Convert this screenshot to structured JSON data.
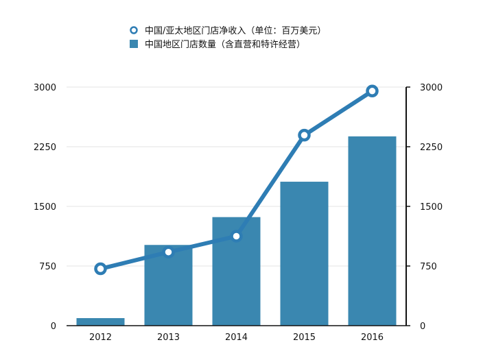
{
  "chart_data": {
    "type": "bar",
    "categories": [
      "2012",
      "2013",
      "2014",
      "2015",
      "2016"
    ],
    "series": [
      {
        "name": "中国/亚太地区门店净收入（单位：百万美元）",
        "kind": "line",
        "axis": "left",
        "values": [
          715,
          925,
          1125,
          2395,
          2950
        ]
      },
      {
        "name": "中国地区门店数量（含直营和特许经营）",
        "kind": "bar",
        "axis": "right",
        "values": [
          95,
          1015,
          1365,
          1810,
          2380
        ]
      }
    ],
    "ylim": [
      0,
      3000
    ],
    "y_ticks": [
      "0",
      "750",
      "1500",
      "2250",
      "3000"
    ],
    "y2_ticks": [
      "0",
      "750",
      "1500",
      "2250",
      "3000"
    ],
    "grid": true,
    "legend_position": "top-center",
    "colors": {
      "bar": "#3a87b0",
      "line": "#2e7db4",
      "marker_fill": "#ffffff",
      "grid": "#e3e3e3",
      "axis": "#111111"
    }
  }
}
